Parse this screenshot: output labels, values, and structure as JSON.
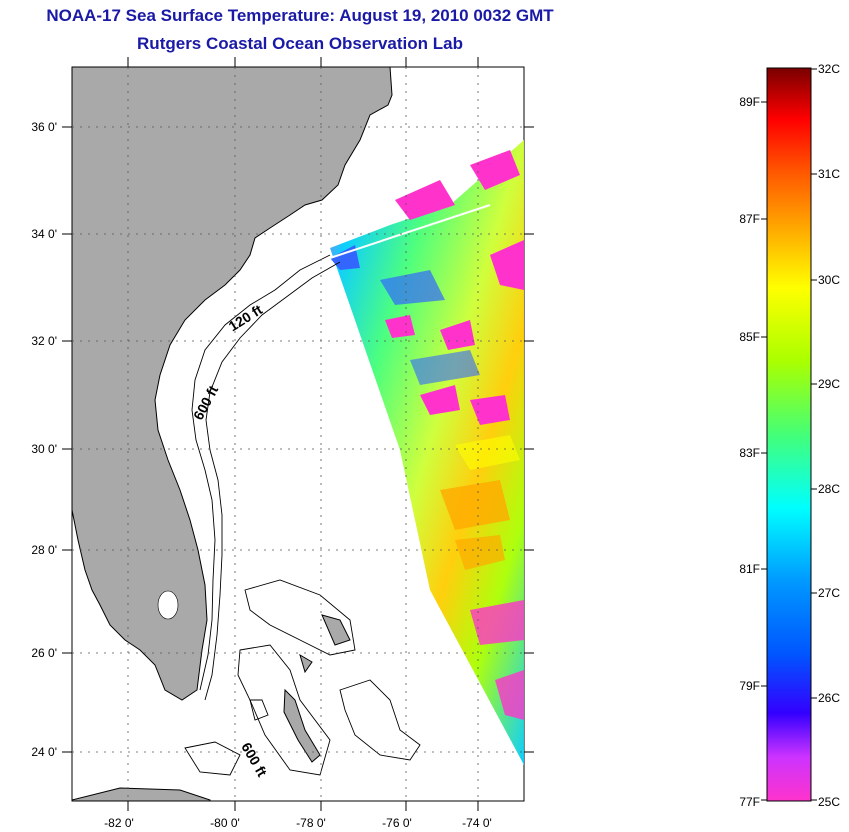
{
  "header": {
    "title": "NOAA-17 Sea Surface Temperature:  August 19, 2010 0032 GMT",
    "subtitle": "Rutgers Coastal Ocean Observation Lab"
  },
  "map": {
    "lon_ticks": [
      "-82 0'",
      "-80 0'",
      "-78 0'",
      "-76 0'",
      "-74 0'"
    ],
    "lat_ticks": [
      "36 0'",
      "34 0'",
      "32 0'",
      "30 0'",
      "28 0'",
      "26 0'",
      "24 0'"
    ],
    "contour_labels": [
      "120 ft",
      "600 ft",
      "600 ft"
    ],
    "colors": {
      "land": "#a9a9a9",
      "ocean_no_data": "#ffffff",
      "coastline": "#000000",
      "grid": "#555555"
    }
  },
  "colorbar": {
    "celsius_labels": [
      "32C",
      "31C",
      "30C",
      "29C",
      "28C",
      "27C",
      "26C",
      "25C"
    ],
    "fahrenheit_labels": [
      "89F",
      "87F",
      "85F",
      "83F",
      "81F",
      "79F",
      "77F"
    ],
    "colors": [
      "#ff33cc",
      "#cc33ff",
      "#0000ff",
      "#0077ff",
      "#00ffff",
      "#44ff77",
      "#aaff00",
      "#ffff00",
      "#ffaa00",
      "#ff5500",
      "#ff0000",
      "#7a0000"
    ]
  }
}
